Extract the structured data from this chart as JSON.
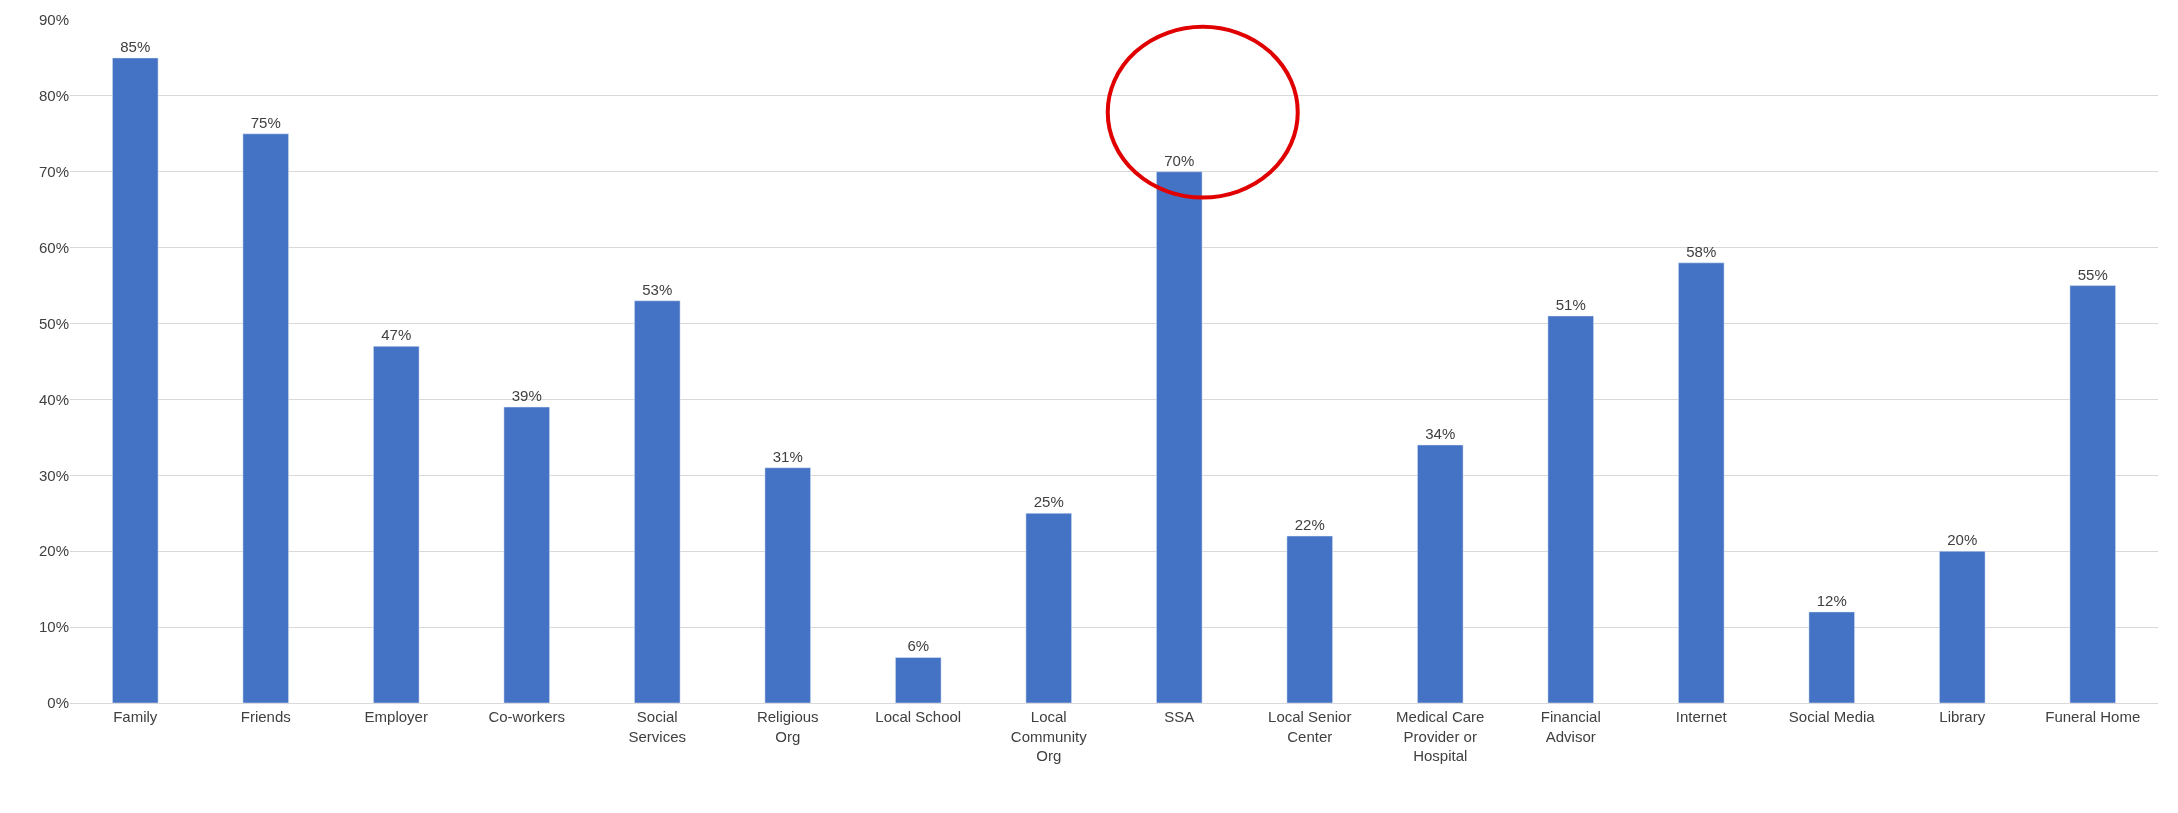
{
  "chart_data": {
    "type": "bar",
    "categories": [
      "Family",
      "Friends",
      "Employer",
      "Co-workers",
      "Social Services",
      "Religious Org",
      "Local School",
      "Local Community Org",
      "SSA",
      "Local Senior Center",
      "Medical Care Provider or Hospital",
      "Financial Advisor",
      "Internet",
      "Social Media",
      "Library",
      "Funeral Home"
    ],
    "values": [
      85,
      75,
      47,
      39,
      53,
      31,
      6,
      25,
      70,
      22,
      34,
      51,
      58,
      12,
      20,
      55
    ],
    "value_labels": [
      "85%",
      "75%",
      "47%",
      "39%",
      "53%",
      "31%",
      "6%",
      "25%",
      "70%",
      "22%",
      "34%",
      "51%",
      "58%",
      "12%",
      "20%",
      "55%"
    ],
    "color": "#4472c4",
    "ylim": [
      0,
      90
    ],
    "yticks": [
      {
        "value": 0,
        "label": "0%"
      },
      {
        "value": 10,
        "label": "10%"
      },
      {
        "value": 20,
        "label": "20%"
      },
      {
        "value": 30,
        "label": "30%"
      },
      {
        "value": 40,
        "label": "40%"
      },
      {
        "value": 50,
        "label": "50%"
      },
      {
        "value": 60,
        "label": "60%"
      },
      {
        "value": 70,
        "label": "70%"
      },
      {
        "value": 80,
        "label": "80%"
      },
      {
        "value": 90,
        "label": "90%"
      }
    ],
    "grid": "y",
    "legend": false
  }
}
